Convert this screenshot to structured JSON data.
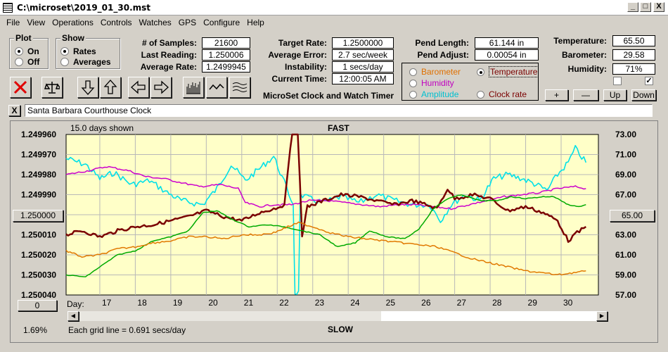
{
  "window": {
    "title": "C:\\microset\\2019_01_30.mst",
    "minimize": "_",
    "maximize": "□",
    "close": "X"
  },
  "menu": [
    "File",
    "View",
    "Operations",
    "Controls",
    "Watches",
    "GPS",
    "Configure",
    "Help"
  ],
  "plot_group": {
    "label": "Plot",
    "options": [
      "On",
      "Off"
    ],
    "selected": "On"
  },
  "show_group": {
    "label": "Show",
    "options": [
      "Rates",
      "Averages"
    ],
    "selected": "Rates"
  },
  "stats": {
    "samples_label": "# of Samples:",
    "samples": "21600",
    "last_reading_label": "Last Reading:",
    "last_reading": "1.250006",
    "average_rate_label": "Average Rate:",
    "average_rate": "1.2499945",
    "target_rate_label": "Target Rate:",
    "target_rate": "1.2500000",
    "average_error_label": "Average Error:",
    "average_error": "2.7 sec/week",
    "instability_label": "Instability:",
    "instability": "1 secs/day",
    "current_time_label": "Current Time:",
    "current_time": "12:00:05 AM",
    "pend_length_label": "Pend Length:",
    "pend_length": "61.144 in",
    "pend_adjust_label": "Pend Adjust:",
    "pend_adjust": "0.00054 in",
    "temperature_label": "Temperature:",
    "temperature": "65.50",
    "barometer_label": "Barometer:",
    "barometer": "29.58",
    "humidity_label": "Humidity:",
    "humidity": "71%"
  },
  "app_caption": "MicroSet Clock and Watch Timer",
  "series_options": [
    {
      "label": "Barometer",
      "color": "#e07000",
      "selected": false
    },
    {
      "label": "Temperature",
      "color": "#7a0000",
      "selected": true
    },
    {
      "label": "Humidity",
      "color": "#c000c0",
      "selected": false
    },
    {
      "label": "Clock rate",
      "color": "#7a0000",
      "selected": false
    },
    {
      "label": "Amplitude",
      "color": "#00c0d0",
      "selected": false
    }
  ],
  "env_buttons": [
    "+",
    "—",
    "Up",
    "Down"
  ],
  "env_checks": [
    false,
    true
  ],
  "toolbar_icons": [
    "clear-icon",
    "balance-icon",
    "arrow-down-icon",
    "arrow-up-icon",
    "arrow-left-icon",
    "arrow-right-icon",
    "bar-graph-icon",
    "wave-icon",
    "multi-wave-icon"
  ],
  "clock_name": "Santa Barbara Courthouse Clock",
  "clock_close": "X",
  "plot": {
    "days_shown": "15.0 days shown",
    "top_label": "FAST",
    "bottom_label": "SLOW",
    "day_label": "Day:",
    "grid_note": "Each grid line = 0.691 secs/day",
    "percent": "1.69%",
    "left_center_button": "1.250000",
    "right_center_button": "65.00",
    "bottom_left_button": "0"
  },
  "chart_data": {
    "type": "line",
    "x_label": "Day:",
    "x_ticks": [
      "17",
      "18",
      "19",
      "20",
      "21",
      "22",
      "23",
      "24",
      "25",
      "26",
      "27",
      "28",
      "29",
      "30"
    ],
    "x_range": [
      16.05,
      31.05
    ],
    "left_axis": {
      "ticks": [
        "1.249960",
        "1.249970",
        "1.249980",
        "1.249990",
        "1.250000",
        "1.250010",
        "1.250020",
        "1.250030",
        "1.250040"
      ],
      "range": [
        1.24996,
        1.25004
      ],
      "inverted": true
    },
    "right_axis": {
      "ticks": [
        "73.00",
        "71.00",
        "69.00",
        "67.00",
        "65.00",
        "63.00",
        "61.00",
        "59.00",
        "57.00"
      ],
      "range": [
        57,
        73
      ]
    },
    "grid": true,
    "background": "#ffffc8",
    "series": [
      {
        "color": "#00e0e8",
        "points": [
          [
            16.05,
            1.249972
          ],
          [
            16.6,
            1.249975
          ],
          [
            17.0,
            1.249982
          ],
          [
            17.4,
            1.249979
          ],
          [
            17.9,
            1.249985
          ],
          [
            18.4,
            1.249983
          ],
          [
            18.9,
            1.249989
          ],
          [
            19.3,
            1.249993
          ],
          [
            19.9,
            1.249995
          ],
          [
            20.3,
            1.249987
          ],
          [
            20.7,
            1.249975
          ],
          [
            21.1,
            1.249983
          ],
          [
            21.5,
            1.249977
          ],
          [
            21.9,
            1.249971
          ],
          [
            22.2,
            1.249984
          ],
          [
            22.45,
            1.249995
          ],
          [
            22.5,
            1.250039
          ],
          [
            22.6,
            1.250038
          ],
          [
            22.65,
            1.24999
          ],
          [
            22.9,
            1.249992
          ],
          [
            23.3,
            1.249994
          ],
          [
            23.8,
            1.249991
          ],
          [
            24.3,
            1.249994
          ],
          [
            24.8,
            1.24999
          ],
          [
            25.3,
            1.249993
          ],
          [
            25.8,
            1.249995
          ],
          [
            26.3,
            1.249995
          ],
          [
            26.6,
            1.250003
          ],
          [
            26.9,
            1.249995
          ],
          [
            27.3,
            1.24999
          ],
          [
            27.7,
            1.249993
          ],
          [
            28.1,
            1.249982
          ],
          [
            28.5,
            1.24998
          ],
          [
            28.9,
            1.249982
          ],
          [
            29.3,
            1.249985
          ],
          [
            29.6,
            1.249988
          ],
          [
            29.9,
            1.24998
          ],
          [
            30.2,
            1.249974
          ],
          [
            30.4,
            1.249967
          ],
          [
            30.7,
            1.249974
          ]
        ]
      },
      {
        "color": "#cc00cc",
        "points": [
          [
            16.05,
            1.24998
          ],
          [
            16.7,
            1.249978
          ],
          [
            17.2,
            1.249976
          ],
          [
            17.8,
            1.249978
          ],
          [
            18.3,
            1.249981
          ],
          [
            18.8,
            1.249982
          ],
          [
            19.3,
            1.249984
          ],
          [
            19.8,
            1.249986
          ],
          [
            20.4,
            1.249985
          ],
          [
            20.9,
            1.249987
          ],
          [
            21.1,
            1.249994
          ],
          [
            21.5,
            1.249996
          ],
          [
            21.9,
            1.249995
          ],
          [
            22.4,
            1.249995
          ],
          [
            22.9,
            1.249993
          ],
          [
            23.4,
            1.249993
          ],
          [
            23.9,
            1.249994
          ],
          [
            24.4,
            1.249995
          ],
          [
            24.9,
            1.249996
          ],
          [
            25.4,
            1.249995
          ],
          [
            25.9,
            1.249995
          ],
          [
            26.4,
            1.249996
          ],
          [
            26.9,
            1.249997
          ],
          [
            27.4,
            1.249995
          ],
          [
            27.9,
            1.249993
          ],
          [
            28.4,
            1.249991
          ],
          [
            28.9,
            1.24999
          ],
          [
            29.4,
            1.249989
          ],
          [
            29.9,
            1.249987
          ],
          [
            30.4,
            1.249986
          ],
          [
            30.7,
            1.249987
          ]
        ]
      },
      {
        "color": "#7a0000",
        "points": [
          [
            16.05,
            1.25001
          ],
          [
            16.5,
            1.250008
          ],
          [
            17.0,
            1.250011
          ],
          [
            17.5,
            1.250008
          ],
          [
            18.0,
            1.250006
          ],
          [
            18.5,
            1.250005
          ],
          [
            19.0,
            1.250003
          ],
          [
            19.5,
            1.250001
          ],
          [
            20.0,
            1.249998
          ],
          [
            20.5,
            1.250001
          ],
          [
            21.0,
            1.250003
          ],
          [
            21.5,
            1.249999
          ],
          [
            21.9,
            1.249997
          ],
          [
            22.2,
            1.249995
          ],
          [
            22.42,
            1.249958
          ],
          [
            22.58,
            1.249958
          ],
          [
            22.7,
            1.25001
          ],
          [
            22.85,
            1.249996
          ],
          [
            23.3,
            1.249993
          ],
          [
            23.8,
            1.24999
          ],
          [
            24.3,
            1.249991
          ],
          [
            24.8,
            1.249993
          ],
          [
            25.3,
            1.249995
          ],
          [
            25.8,
            1.249993
          ],
          [
            26.2,
            1.249995
          ],
          [
            26.5,
            1.249997
          ],
          [
            26.8,
            1.249987
          ],
          [
            27.0,
            1.249992
          ],
          [
            27.5,
            1.24999
          ],
          [
            28.0,
            1.249992
          ],
          [
            28.5,
            1.249998
          ],
          [
            29.0,
            1.249996
          ],
          [
            29.5,
            1.249999
          ],
          [
            29.9,
            1.250003
          ],
          [
            30.2,
            1.250013
          ],
          [
            30.45,
            1.250009
          ],
          [
            30.7,
            1.250006
          ]
        ]
      },
      {
        "color": "#00aa00",
        "points": [
          [
            16.05,
            1.25003
          ],
          [
            16.6,
            1.250031
          ],
          [
            17.0,
            1.250026
          ],
          [
            17.5,
            1.25002
          ],
          [
            18.0,
            1.250018
          ],
          [
            18.5,
            1.250013
          ],
          [
            19.0,
            1.250011
          ],
          [
            19.5,
            1.250008
          ],
          [
            19.9,
            1.249999
          ],
          [
            20.3,
            1.249998
          ],
          [
            20.7,
            1.250002
          ],
          [
            21.2,
            1.250006
          ],
          [
            21.7,
            1.250005
          ],
          [
            22.2,
            1.250006
          ],
          [
            22.7,
            1.250008
          ],
          [
            23.2,
            1.25001
          ],
          [
            23.7,
            1.250016
          ],
          [
            24.2,
            1.250014
          ],
          [
            24.6,
            1.250008
          ],
          [
            25.1,
            1.250011
          ],
          [
            25.6,
            1.250012
          ],
          [
            26.0,
            1.250007
          ],
          [
            26.4,
            1.249997
          ],
          [
            26.8,
            1.249992
          ],
          [
            27.2,
            1.24999
          ],
          [
            27.7,
            1.249993
          ],
          [
            28.2,
            1.249993
          ],
          [
            28.6,
            1.249991
          ],
          [
            29.0,
            1.249992
          ],
          [
            29.5,
            1.249991
          ],
          [
            29.8,
            1.249991
          ],
          [
            30.2,
            1.249995
          ],
          [
            30.5,
            1.249996
          ],
          [
            30.7,
            1.249995
          ]
        ]
      },
      {
        "color": "#e07800",
        "points": [
          [
            16.05,
            1.250018
          ],
          [
            16.5,
            1.250021
          ],
          [
            17.0,
            1.25002
          ],
          [
            17.5,
            1.250017
          ],
          [
            18.0,
            1.250016
          ],
          [
            18.5,
            1.250014
          ],
          [
            19.0,
            1.250013
          ],
          [
            19.5,
            1.250011
          ],
          [
            20.0,
            1.250011
          ],
          [
            20.5,
            1.250012
          ],
          [
            21.0,
            1.25001
          ],
          [
            21.5,
            1.25001
          ],
          [
            21.9,
            1.250009
          ],
          [
            22.3,
            1.250006
          ],
          [
            22.6,
            1.250004
          ],
          [
            23.0,
            1.250006
          ],
          [
            23.5,
            1.250009
          ],
          [
            24.0,
            1.250011
          ],
          [
            24.5,
            1.250012
          ],
          [
            25.0,
            1.250013
          ],
          [
            25.5,
            1.250014
          ],
          [
            26.0,
            1.250015
          ],
          [
            26.5,
            1.250016
          ],
          [
            27.0,
            1.250019
          ],
          [
            27.5,
            1.250022
          ],
          [
            28.0,
            1.250024
          ],
          [
            28.5,
            1.250026
          ],
          [
            29.0,
            1.250028
          ],
          [
            29.5,
            1.250029
          ],
          [
            29.9,
            1.25003
          ],
          [
            30.3,
            1.250029
          ],
          [
            30.7,
            1.250028
          ]
        ]
      }
    ]
  }
}
